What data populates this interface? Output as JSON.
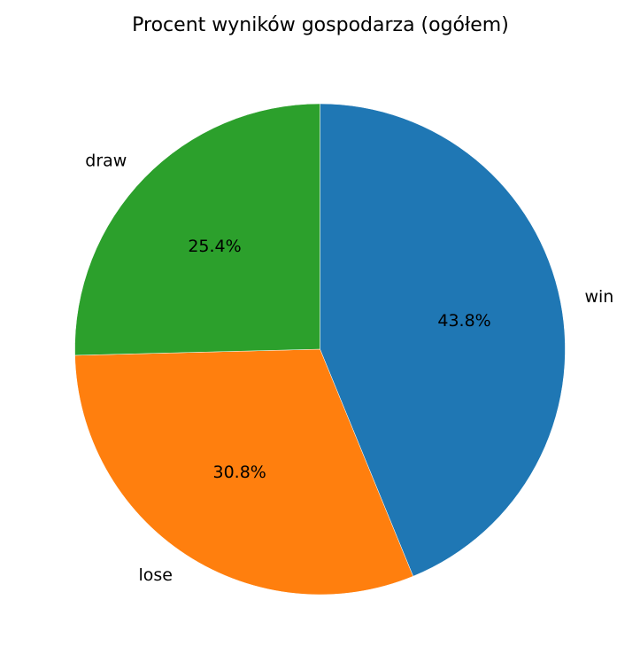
{
  "chart_data": {
    "type": "pie",
    "title": "Procent wyników gospodarza (ogółem)",
    "start_angle_deg": 90,
    "direction": "clockwise",
    "slices": [
      {
        "label": "win",
        "value": 43.8,
        "pct_label": "43.8%",
        "color": "#1f77b4"
      },
      {
        "label": "lose",
        "value": 30.8,
        "pct_label": "30.8%",
        "color": "#ff7f0e"
      },
      {
        "label": "draw",
        "value": 25.4,
        "pct_label": "25.4%",
        "color": "#2ca02c"
      }
    ]
  }
}
